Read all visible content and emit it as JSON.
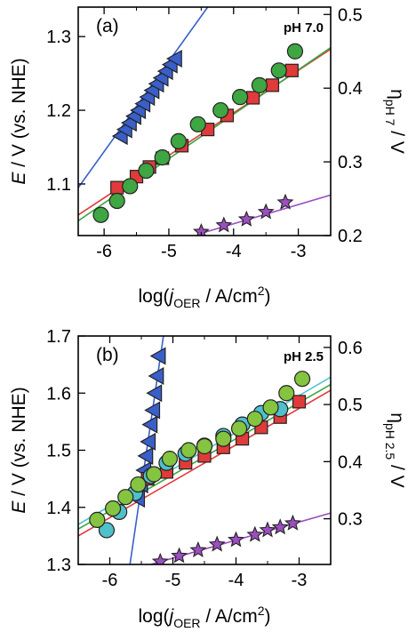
{
  "chart_data": [
    {
      "type": "scatter",
      "panel_label": "(a)",
      "annotation": "pH 7.0",
      "xlabel": {
        "pre": "log(",
        "j": "j",
        "sub": "OER",
        "post": " / A/cm",
        "sup": "2",
        "close": ")"
      },
      "ylabel": {
        "e": "E",
        "rest": " / V (vs. NHE)"
      },
      "y2label": {
        "eta": "η",
        "sub": "pH 7",
        "post": " / V"
      },
      "xlim": [
        -6.4,
        -2.5
      ],
      "ylim": [
        1.03,
        1.34
      ],
      "y2lim": [
        0.2,
        0.51
      ],
      "xticks": [
        "-6",
        "-5",
        "-4",
        "-3"
      ],
      "xtick_values": [
        -6,
        -5,
        -4,
        -3
      ],
      "yticks": [
        "1.1",
        "1.2",
        "1.3"
      ],
      "ytick_values": [
        1.1,
        1.2,
        1.3
      ],
      "y2ticks": [
        "0.2",
        "0.3",
        "0.4",
        "0.5"
      ],
      "y2tick_values": [
        0.2,
        0.3,
        0.4,
        0.5
      ],
      "series": [
        {
          "color": "#3a5fc8",
          "marker": "triangle-left",
          "x": [
            -5.74,
            -5.67,
            -5.6,
            -5.53,
            -5.46,
            -5.39,
            -5.32,
            -5.25,
            -5.18,
            -5.11,
            -5.04,
            -4.97,
            -4.9
          ],
          "y": [
            1.165,
            1.174,
            1.183,
            1.192,
            1.2,
            1.209,
            1.218,
            1.227,
            1.236,
            1.244,
            1.253,
            1.262,
            1.27
          ],
          "fit": {
            "color": "#3a5fc8",
            "x": [
              -6.4,
              -4.4
            ],
            "y": [
              1.095,
              1.34
            ]
          }
        },
        {
          "color": "#e03a3a",
          "marker": "square",
          "x": [
            -5.8,
            -5.5,
            -5.3,
            -5.1,
            -4.8,
            -4.4,
            -4.1,
            -3.7,
            -3.4,
            -3.1
          ],
          "y": [
            1.095,
            1.11,
            1.123,
            1.135,
            1.152,
            1.174,
            1.193,
            1.217,
            1.234,
            1.254
          ],
          "fit": {
            "color": "#e03a3a",
            "x": [
              -6.4,
              -2.5
            ],
            "y": [
              1.058,
              1.283
            ]
          }
        },
        {
          "color": "#3ea642",
          "marker": "circle",
          "x": [
            -6.05,
            -5.8,
            -5.6,
            -5.35,
            -5.1,
            -4.85,
            -4.55,
            -4.2,
            -3.9,
            -3.6,
            -3.3,
            -3.05
          ],
          "y": [
            1.058,
            1.077,
            1.097,
            1.118,
            1.136,
            1.158,
            1.181,
            1.2,
            1.218,
            1.234,
            1.254,
            1.28
          ],
          "fit": {
            "color": "#3ea642",
            "x": [
              -6.4,
              -2.5
            ],
            "y": [
              1.05,
              1.285
            ]
          }
        },
        {
          "color": "#9b4fc0",
          "marker": "star",
          "x": [
            -4.5,
            -4.15,
            -3.8,
            -3.5,
            -3.2
          ],
          "y": [
            1.035,
            1.044,
            1.052,
            1.062,
            1.075
          ],
          "fit": {
            "color": "#9b4fc0",
            "x": [
              -4.5,
              -2.5
            ],
            "y": [
              1.033,
              1.085
            ]
          }
        }
      ]
    },
    {
      "type": "scatter",
      "panel_label": "(b)",
      "annotation": "pH 2.5",
      "xlabel": {
        "pre": "log(",
        "j": "j",
        "sub": "OER",
        "post": " / A/cm",
        "sup": "2",
        "close": ")"
      },
      "ylabel": {
        "e": "E",
        "rest": " / V (vs. NHE)"
      },
      "y2label": {
        "eta": "η",
        "sub": "pH 2.5",
        "post": " / V"
      },
      "xlim": [
        -6.5,
        -2.5
      ],
      "ylim": [
        1.3,
        1.7
      ],
      "y2lim": [
        0.22,
        0.62
      ],
      "xticks": [
        "-6",
        "-5",
        "-4",
        "-3"
      ],
      "xtick_values": [
        -6,
        -5,
        -4,
        -3
      ],
      "yticks": [
        "1.3",
        "1.4",
        "1.5",
        "1.6",
        "1.7"
      ],
      "ytick_values": [
        1.3,
        1.4,
        1.5,
        1.6,
        1.7
      ],
      "y2ticks": [
        "0.3",
        "0.4",
        "0.5",
        "0.6"
      ],
      "y2tick_values": [
        0.3,
        0.4,
        0.5,
        0.6
      ],
      "series": [
        {
          "color": "#3a5fc8",
          "marker": "triangle-left",
          "x": [
            -5.55,
            -5.5,
            -5.45,
            -5.42,
            -5.38,
            -5.35,
            -5.31,
            -5.28,
            -5.25,
            -5.22
          ],
          "y": [
            1.415,
            1.44,
            1.465,
            1.49,
            1.515,
            1.545,
            1.57,
            1.6,
            1.63,
            1.665
          ],
          "fit": {
            "color": "#3a5fc8",
            "x": [
              -5.68,
              -5.15
            ],
            "y": [
              1.3,
              1.7
            ]
          }
        },
        {
          "color": "#e03a3a",
          "marker": "square",
          "x": [
            -5.4,
            -5.1,
            -4.8,
            -4.5,
            -4.2,
            -3.9,
            -3.6,
            -3.3,
            -3.0
          ],
          "y": [
            1.45,
            1.462,
            1.478,
            1.49,
            1.505,
            1.52,
            1.54,
            1.558,
            1.585
          ],
          "fit": {
            "color": "#e03a3a",
            "x": [
              -6.5,
              -2.5
            ],
            "y": [
              1.35,
              1.605
            ]
          }
        },
        {
          "color": "#4fc0cc",
          "marker": "circle",
          "x": [
            -6.05,
            -5.85,
            -5.6,
            -5.35,
            -5.1,
            -4.8,
            -4.5,
            -4.2,
            -3.9,
            -3.6,
            -3.3
          ],
          "y": [
            1.36,
            1.392,
            1.425,
            1.455,
            1.478,
            1.494,
            1.508,
            1.525,
            1.545,
            1.565,
            1.572
          ],
          "fit": {
            "color": "#4fc0cc",
            "x": [
              -6.5,
              -2.5
            ],
            "y": [
              1.37,
              1.628
            ]
          }
        },
        {
          "color": "#84c440",
          "marker": "circle",
          "x": [
            -6.2,
            -5.95,
            -5.75,
            -5.55,
            -5.3,
            -5.05,
            -4.75,
            -4.5,
            -4.2,
            -3.95,
            -3.7,
            -3.45,
            -3.2,
            -2.95
          ],
          "y": [
            1.378,
            1.398,
            1.418,
            1.44,
            1.458,
            1.485,
            1.5,
            1.507,
            1.52,
            1.538,
            1.555,
            1.575,
            1.6,
            1.625
          ],
          "fit": {
            "color": "#3ea642",
            "x": [
              -6.5,
              -2.5
            ],
            "y": [
              1.362,
              1.615
            ]
          }
        },
        {
          "color": "#9b4fc0",
          "marker": "star",
          "x": [
            -5.2,
            -4.9,
            -4.6,
            -4.3,
            -4.0,
            -3.7,
            -3.5,
            -3.3,
            -3.1
          ],
          "y": [
            1.305,
            1.315,
            1.325,
            1.335,
            1.343,
            1.352,
            1.36,
            1.365,
            1.372
          ],
          "fit": {
            "color": "#9b4fc0",
            "x": [
              -5.35,
              -2.5
            ],
            "y": [
              1.3,
              1.39
            ]
          }
        }
      ]
    }
  ]
}
